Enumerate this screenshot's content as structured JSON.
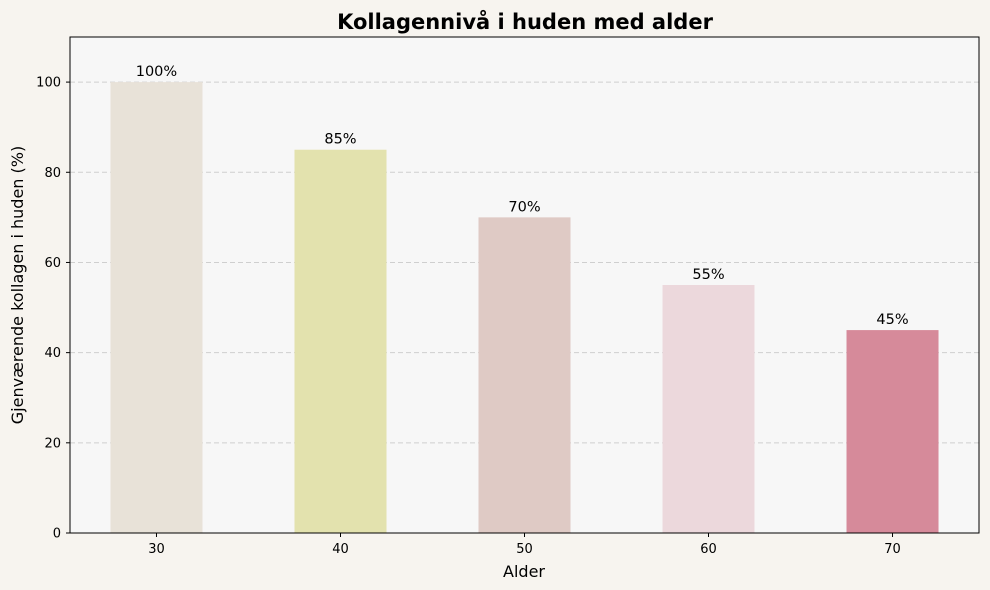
{
  "chart_data": {
    "type": "bar",
    "title": "Kollagennivå i huden med alder",
    "xlabel": "Alder",
    "ylabel": "Gjenværende kollagen i huden (%)",
    "categories": [
      "30",
      "40",
      "50",
      "60",
      "70"
    ],
    "values": [
      100,
      85,
      70,
      55,
      45
    ],
    "data_labels": [
      "100%",
      "85%",
      "70%",
      "55%",
      "45%"
    ],
    "colors": [
      "#e8e2d8",
      "#e3e2ae",
      "#dfcac5",
      "#ecd8dc",
      "#d68a9a"
    ],
    "ylim": [
      0,
      110
    ],
    "yticks": [
      "0",
      "20",
      "40",
      "60",
      "80",
      "100"
    ],
    "grid": "y-dashed",
    "legend": "none",
    "plot_background": "#f7f7f7",
    "figure_background": "#f7f4ef"
  }
}
